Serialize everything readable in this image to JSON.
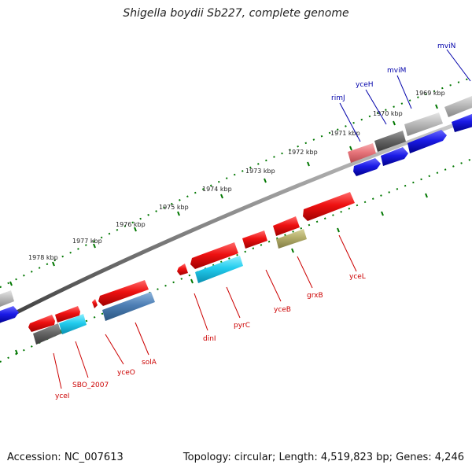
{
  "title": "Shigella boydii Sb227, complete genome",
  "footer": {
    "accession": "Accession: NC_007613",
    "summary": "Topology: circular; Length: 4,519,823 bp; Genes: 4,246"
  },
  "colors": {
    "red": "#ee1111",
    "blue": "#1a1ae6",
    "cyan": "#22ccee",
    "steelblue": "#4d7fb5",
    "darkgray": "#666666",
    "lightgray": "#bbbbbb",
    "olive": "#b3ad6a",
    "salmon": "#e8767c",
    "label_red": "#cc0000",
    "label_blue": "#0000aa",
    "tick_green": "#007700"
  },
  "scale_labels": [
    "1978 kbp",
    "1977 kbp",
    "1976 kbp",
    "1975 kbp",
    "1974 kbp",
    "1973 kbp",
    "1972 kbp",
    "1971 kbp",
    "1970 kbp",
    "1969 kbp"
  ],
  "genes_bottom": [
    {
      "name": "yceI",
      "color": "darkgray",
      "label_color": "red"
    },
    {
      "name": "SBO_2007",
      "color": "cyan",
      "label_color": "red"
    },
    {
      "name": "yceO",
      "color": "red",
      "label_color": "red"
    },
    {
      "name": "solA",
      "color": "steelblue",
      "label_color": "red"
    },
    {
      "name": "dinI",
      "color": "red",
      "label_color": "red"
    },
    {
      "name": "pyrC",
      "color": "cyan",
      "label_color": "red"
    },
    {
      "name": "yceB",
      "color": "red",
      "label_color": "red"
    },
    {
      "name": "grxB",
      "color": "olive",
      "label_color": "red"
    },
    {
      "name": "yceL",
      "color": "red",
      "label_color": "red"
    }
  ],
  "genes_top": [
    {
      "name": "rimJ",
      "color": "salmon",
      "label_color": "blue"
    },
    {
      "name": "yceH",
      "color": "darkgray",
      "label_color": "blue"
    },
    {
      "name": "mviM",
      "color": "lightgray",
      "label_color": "blue"
    },
    {
      "name": "mviN",
      "color": "lightgray",
      "label_color": "blue"
    }
  ]
}
